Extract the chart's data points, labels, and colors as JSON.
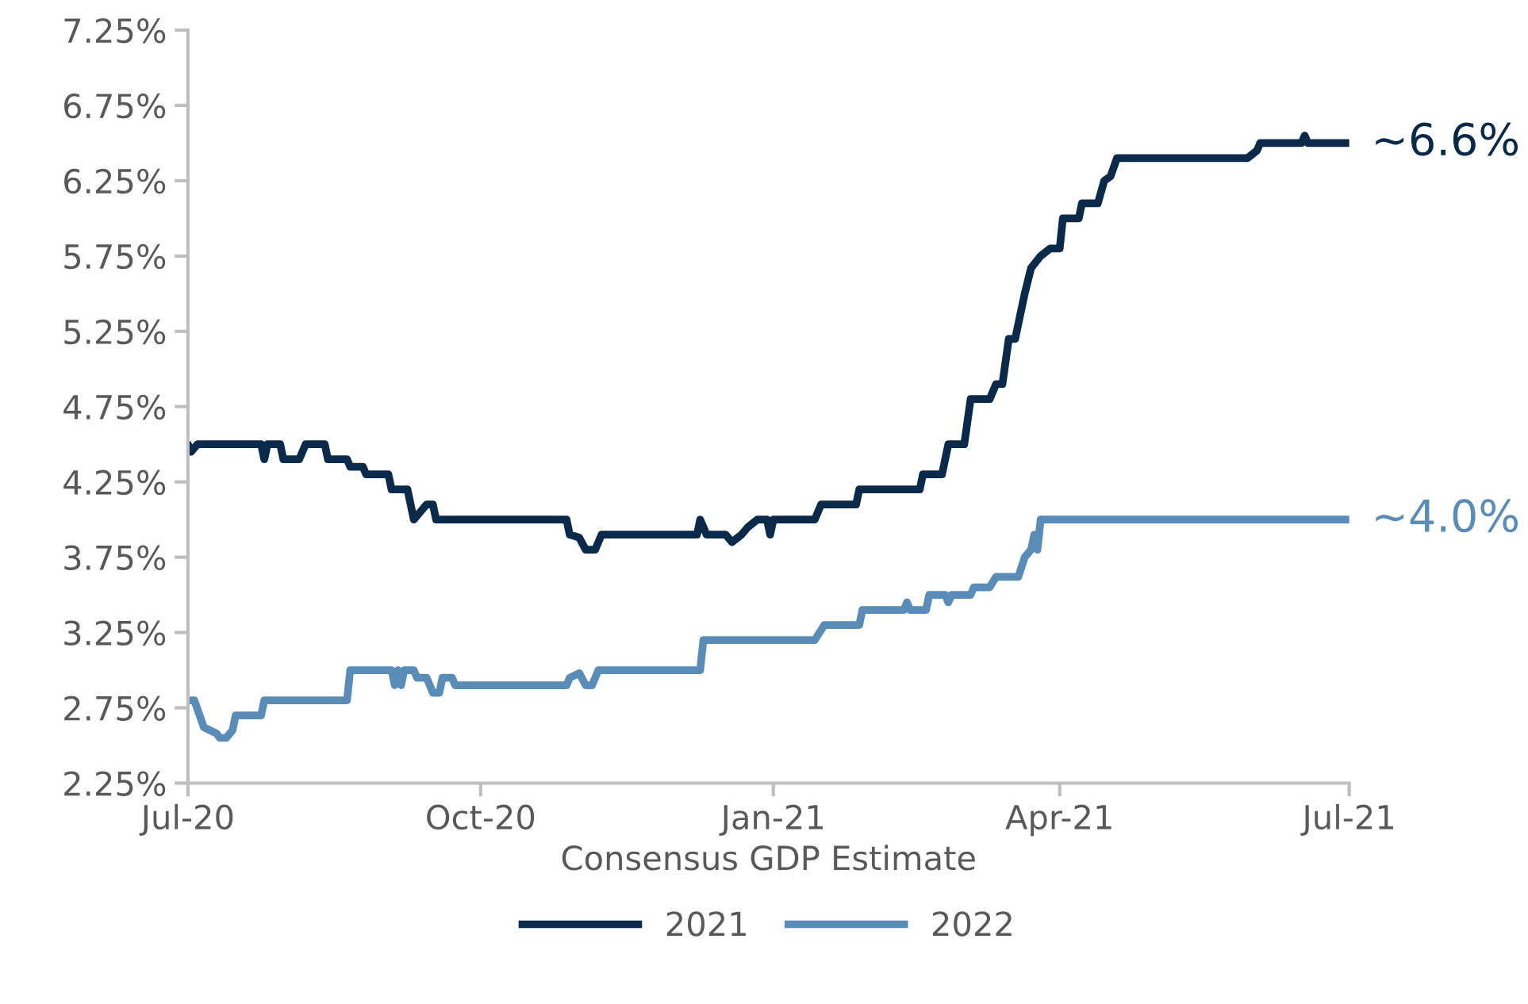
{
  "chart_data": {
    "type": "line",
    "xlabel": "Consensus GDP Estimate",
    "xlim": [
      "2020-07-01",
      "2021-07-01"
    ],
    "xticks": [
      {
        "value": "2020-07-01",
        "label": "Jul-20"
      },
      {
        "value": "2020-10-01",
        "label": "Oct-20"
      },
      {
        "value": "2021-01-01",
        "label": "Jan-21"
      },
      {
        "value": "2021-04-01",
        "label": "Apr-21"
      },
      {
        "value": "2021-07-01",
        "label": "Jul-21"
      }
    ],
    "ylim": [
      2.25,
      7.25
    ],
    "yticks": [
      {
        "value": 2.25,
        "label": "2.25%"
      },
      {
        "value": 2.75,
        "label": "2.75%"
      },
      {
        "value": 3.25,
        "label": "3.25%"
      },
      {
        "value": 3.75,
        "label": "3.75%"
      },
      {
        "value": 4.25,
        "label": "4.25%"
      },
      {
        "value": 4.75,
        "label": "4.75%"
      },
      {
        "value": 5.25,
        "label": "5.25%"
      },
      {
        "value": 5.75,
        "label": "5.75%"
      },
      {
        "value": 6.25,
        "label": "6.25%"
      },
      {
        "value": 6.75,
        "label": "6.75%"
      },
      {
        "value": 7.25,
        "label": "7.25%"
      }
    ],
    "grid": false,
    "legend": "bottom",
    "marker": "none",
    "line_style": "solid",
    "series": [
      {
        "name": "2021",
        "color": "#0b2a4a",
        "x": [
          "2020-07-01",
          "2020-07-02",
          "2020-07-04",
          "2020-07-24",
          "2020-07-25",
          "2020-07-26",
          "2020-07-30",
          "2020-07-31",
          "2020-08-05",
          "2020-08-07",
          "2020-08-13",
          "2020-08-14",
          "2020-08-20",
          "2020-08-21",
          "2020-08-25",
          "2020-08-26",
          "2020-09-02",
          "2020-09-03",
          "2020-09-08",
          "2020-09-09",
          "2020-09-10",
          "2020-09-14",
          "2020-09-16",
          "2020-09-17",
          "2020-10-28",
          "2020-10-29",
          "2020-11-01",
          "2020-11-03",
          "2020-11-06",
          "2020-11-08",
          "2020-12-08",
          "2020-12-09",
          "2020-12-11",
          "2020-12-17",
          "2020-12-19",
          "2020-12-22",
          "2020-12-24",
          "2020-12-27",
          "2020-12-30",
          "2020-12-31",
          "2021-01-01",
          "2021-01-14",
          "2021-01-16",
          "2021-01-27",
          "2021-01-28",
          "2021-02-16",
          "2021-02-17",
          "2021-02-23",
          "2021-02-25",
          "2021-03-02",
          "2021-03-04",
          "2021-03-10",
          "2021-03-12",
          "2021-03-14",
          "2021-03-16",
          "2021-03-18",
          "2021-03-21",
          "2021-03-23",
          "2021-03-26",
          "2021-03-29",
          "2021-04-01",
          "2021-04-02",
          "2021-04-07",
          "2021-04-08",
          "2021-04-13",
          "2021-04-15",
          "2021-04-17",
          "2021-04-19",
          "2021-05-30",
          "2021-06-02",
          "2021-06-03",
          "2021-06-16",
          "2021-06-17",
          "2021-06-18",
          "2021-07-01"
        ],
        "values": [
          4.5,
          4.45,
          4.5,
          4.5,
          4.4,
          4.5,
          4.5,
          4.4,
          4.4,
          4.5,
          4.5,
          4.4,
          4.4,
          4.35,
          4.35,
          4.3,
          4.3,
          4.2,
          4.2,
          4.1,
          4.0,
          4.1,
          4.1,
          4.0,
          4.0,
          3.9,
          3.88,
          3.8,
          3.8,
          3.9,
          3.9,
          4.0,
          3.9,
          3.9,
          3.85,
          3.9,
          3.95,
          4.0,
          4.0,
          3.9,
          4.0,
          4.0,
          4.1,
          4.1,
          4.2,
          4.2,
          4.3,
          4.3,
          4.5,
          4.5,
          4.8,
          4.8,
          4.9,
          4.9,
          5.2,
          5.2,
          5.5,
          5.67,
          5.75,
          5.8,
          5.8,
          6.0,
          6.0,
          6.1,
          6.1,
          6.25,
          6.28,
          6.4,
          6.4,
          6.45,
          6.5,
          6.5,
          6.55,
          6.5,
          6.5
        ]
      },
      {
        "name": "2022",
        "color": "#5a8cb8",
        "x": [
          "2020-07-01",
          "2020-07-03",
          "2020-07-06",
          "2020-07-10",
          "2020-07-11",
          "2020-07-13",
          "2020-07-15",
          "2020-07-16",
          "2020-07-24",
          "2020-07-25",
          "2020-08-20",
          "2020-08-21",
          "2020-09-03",
          "2020-09-04",
          "2020-09-05",
          "2020-09-06",
          "2020-09-07",
          "2020-09-10",
          "2020-09-11",
          "2020-09-14",
          "2020-09-16",
          "2020-09-18",
          "2020-09-19",
          "2020-09-22",
          "2020-09-23",
          "2020-10-28",
          "2020-10-29",
          "2020-11-01",
          "2020-11-03",
          "2020-11-05",
          "2020-11-07",
          "2020-12-09",
          "2020-12-10",
          "2021-01-14",
          "2021-01-17",
          "2021-01-28",
          "2021-01-29",
          "2021-02-11",
          "2021-02-12",
          "2021-02-13",
          "2021-02-18",
          "2021-02-19",
          "2021-02-24",
          "2021-02-25",
          "2021-02-26",
          "2021-03-04",
          "2021-03-05",
          "2021-03-10",
          "2021-03-12",
          "2021-03-19",
          "2021-03-21",
          "2021-03-23",
          "2021-03-24",
          "2021-03-25",
          "2021-03-26",
          "2021-07-01"
        ],
        "values": [
          2.8,
          2.8,
          2.62,
          2.58,
          2.55,
          2.55,
          2.6,
          2.7,
          2.7,
          2.8,
          2.8,
          3.0,
          3.0,
          2.9,
          3.0,
          2.9,
          3.0,
          3.0,
          2.95,
          2.95,
          2.85,
          2.85,
          2.95,
          2.95,
          2.9,
          2.9,
          2.95,
          2.98,
          2.9,
          2.9,
          3.0,
          3.0,
          3.2,
          3.2,
          3.3,
          3.3,
          3.4,
          3.4,
          3.45,
          3.4,
          3.4,
          3.5,
          3.5,
          3.45,
          3.5,
          3.5,
          3.55,
          3.55,
          3.62,
          3.62,
          3.75,
          3.8,
          3.9,
          3.8,
          4.0,
          4.0
        ]
      }
    ],
    "annotations": [
      {
        "text": "~6.6%",
        "x": "2021-07-01",
        "y": 6.5
      },
      {
        "text": "~4.0%",
        "x": "2021-07-01",
        "y": 4.0
      }
    ]
  }
}
